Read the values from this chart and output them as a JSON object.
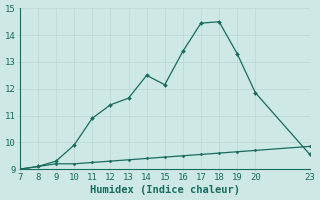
{
  "xlabel": "Humidex (Indice chaleur)",
  "x": [
    7,
    8,
    9,
    10,
    11,
    12,
    13,
    14,
    15,
    16,
    17,
    18,
    19,
    20,
    23
  ],
  "y_upper": [
    9.0,
    9.1,
    9.3,
    9.9,
    10.9,
    11.4,
    11.65,
    12.5,
    12.15,
    13.4,
    14.45,
    14.5,
    13.3,
    11.85,
    9.55
  ],
  "y_lower": [
    9.0,
    9.1,
    9.2,
    9.2,
    9.25,
    9.3,
    9.35,
    9.4,
    9.45,
    9.5,
    9.55,
    9.6,
    9.65,
    9.7,
    9.85
  ],
  "line_color": "#1a6b5e",
  "bg_color": "#cde8e5",
  "grid_color": "#b8d8d5",
  "xlim": [
    7,
    23
  ],
  "ylim": [
    9,
    15
  ],
  "xticks": [
    7,
    8,
    9,
    10,
    11,
    12,
    13,
    14,
    15,
    16,
    17,
    18,
    19,
    20,
    23
  ],
  "yticks": [
    9,
    10,
    11,
    12,
    13,
    14,
    15
  ],
  "tick_fontsize": 6.5,
  "xlabel_fontsize": 7.5
}
